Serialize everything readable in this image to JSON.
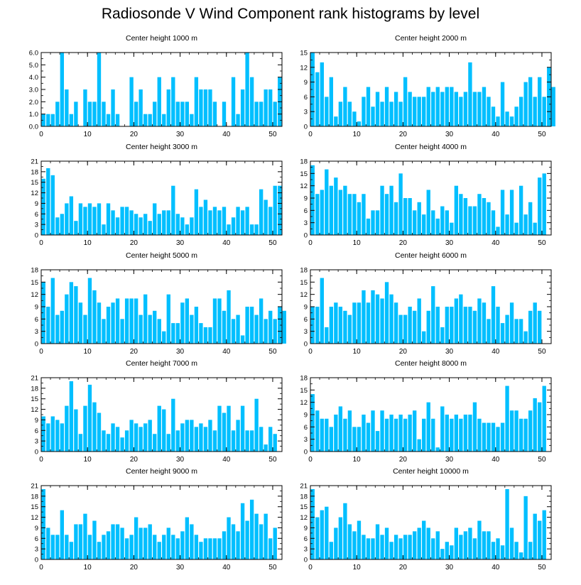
{
  "title": "Radiosonde V Wind Component rank histograms by level",
  "colors": {
    "bar": "#00bfff",
    "axis": "#000000"
  },
  "chart_data": [
    {
      "type": "bar",
      "title": "Center height 1000 m",
      "xlim": [
        0,
        52
      ],
      "ylim": [
        0,
        6
      ],
      "xticks": [
        0,
        10,
        20,
        30,
        40,
        50
      ],
      "yticks": [
        "0.0",
        "1.0",
        "2.0",
        "3.0",
        "4.0",
        "5.0",
        "6.0"
      ],
      "values": [
        1,
        1,
        1,
        2,
        6,
        3,
        1,
        2,
        0,
        3,
        2,
        2,
        6,
        2,
        1,
        3,
        1,
        0,
        0,
        4,
        2,
        3,
        1,
        1,
        2,
        4,
        1,
        3,
        4,
        2,
        2,
        2,
        1,
        4,
        3,
        3,
        3,
        2,
        0,
        2,
        0,
        4,
        1,
        3,
        6,
        4,
        2,
        2,
        3,
        3,
        2,
        4
      ]
    },
    {
      "type": "bar",
      "title": "Center height 2000 m",
      "xlim": [
        0,
        52
      ],
      "ylim": [
        0,
        15
      ],
      "xticks": [
        0,
        10,
        20,
        30,
        40,
        50
      ],
      "yticks": [
        "0",
        "3",
        "6",
        "9",
        "12",
        "15"
      ],
      "values": [
        15,
        11,
        13,
        6,
        10,
        2,
        5,
        8,
        5,
        3,
        1,
        6,
        8,
        4,
        7,
        5,
        8,
        5,
        7,
        5,
        10,
        7,
        6,
        6,
        6,
        8,
        7,
        8,
        7,
        8,
        8,
        7,
        6,
        7,
        13,
        7,
        7,
        8,
        6,
        4,
        2,
        9,
        3,
        2,
        4,
        6,
        9,
        10,
        6,
        10,
        6,
        12,
        8
      ]
    },
    {
      "type": "bar",
      "title": "Center height 3000 m",
      "xlim": [
        0,
        52
      ],
      "ylim": [
        0,
        21
      ],
      "xticks": [
        0,
        10,
        20,
        30,
        40,
        50
      ],
      "yticks": [
        "0",
        "3",
        "6",
        "9",
        "12",
        "15",
        "18",
        "21"
      ],
      "values": [
        16,
        19,
        17,
        5,
        6,
        9,
        11,
        4,
        9,
        8,
        9,
        8,
        9,
        3,
        9,
        7,
        5,
        8,
        8,
        7,
        6,
        5,
        6,
        4,
        9,
        6,
        7,
        7,
        14,
        6,
        5,
        3,
        5,
        13,
        8,
        10,
        7,
        8,
        7,
        8,
        3,
        5,
        8,
        7,
        8,
        3,
        3,
        13,
        10,
        8,
        14,
        14
      ]
    },
    {
      "type": "bar",
      "title": "Center height 4000 m",
      "xlim": [
        0,
        52
      ],
      "ylim": [
        0,
        18
      ],
      "xticks": [
        0,
        10,
        20,
        30,
        40,
        50
      ],
      "yticks": [
        "0",
        "3",
        "6",
        "9",
        "12",
        "15",
        "18"
      ],
      "values": [
        17,
        10,
        11,
        16,
        12,
        14,
        11,
        12,
        10,
        10,
        8,
        10,
        4,
        6,
        6,
        12,
        10,
        12,
        8,
        15,
        9,
        9,
        6,
        8,
        5,
        11,
        6,
        4,
        7,
        6,
        3,
        12,
        10,
        9,
        7,
        7,
        10,
        9,
        8,
        6,
        2,
        11,
        5,
        11,
        3,
        12,
        5,
        8,
        3,
        14,
        15
      ]
    },
    {
      "type": "bar",
      "title": "Center height 5000 m",
      "xlim": [
        0,
        52
      ],
      "ylim": [
        0,
        18
      ],
      "xticks": [
        0,
        10,
        20,
        30,
        40,
        50
      ],
      "yticks": [
        "0",
        "3",
        "6",
        "9",
        "12",
        "15",
        "18"
      ],
      "values": [
        15,
        9,
        16,
        7,
        8,
        12,
        15,
        14,
        10,
        7,
        16,
        13,
        10,
        6,
        9,
        10,
        11,
        6,
        11,
        11,
        11,
        7,
        12,
        7,
        8,
        6,
        3,
        12,
        5,
        5,
        10,
        11,
        7,
        9,
        5,
        4,
        4,
        11,
        11,
        8,
        13,
        6,
        7,
        2,
        9,
        9,
        7,
        11,
        6,
        8,
        6,
        9,
        8
      ]
    },
    {
      "type": "bar",
      "title": "Center height 6000 m",
      "xlim": [
        0,
        52
      ],
      "ylim": [
        0,
        18
      ],
      "xticks": [
        0,
        10,
        20,
        30,
        40,
        50
      ],
      "yticks": [
        "0",
        "3",
        "6",
        "9",
        "12",
        "15",
        "18"
      ],
      "values": [
        9,
        9,
        16,
        4,
        9,
        10,
        9,
        8,
        7,
        10,
        10,
        13,
        10,
        13,
        12,
        11,
        15,
        12,
        10,
        7,
        7,
        9,
        8,
        11,
        3,
        8,
        14,
        9,
        4,
        9,
        9,
        11,
        12,
        9,
        9,
        8,
        11,
        10,
        6,
        14,
        9,
        5,
        7,
        10,
        6,
        6,
        3,
        8,
        10,
        8
      ]
    },
    {
      "type": "bar",
      "title": "Center height 7000 m",
      "xlim": [
        0,
        52
      ],
      "ylim": [
        0,
        21
      ],
      "xticks": [
        0,
        10,
        20,
        30,
        40,
        50
      ],
      "yticks": [
        "0",
        "3",
        "6",
        "9",
        "12",
        "15",
        "18",
        "21"
      ],
      "values": [
        10,
        8,
        10,
        9,
        8,
        13,
        20,
        12,
        5,
        13,
        19,
        14,
        11,
        6,
        5,
        8,
        7,
        4,
        6,
        9,
        8,
        7,
        8,
        9,
        5,
        13,
        12,
        5,
        15,
        6,
        8,
        9,
        9,
        7,
        8,
        7,
        9,
        6,
        13,
        11,
        13,
        6,
        9,
        13,
        6,
        6,
        15,
        7,
        2,
        7,
        5
      ]
    },
    {
      "type": "bar",
      "title": "Center height 8000 m",
      "xlim": [
        0,
        52
      ],
      "ylim": [
        0,
        18
      ],
      "xticks": [
        0,
        10,
        20,
        30,
        40,
        50
      ],
      "yticks": [
        "0",
        "3",
        "6",
        "9",
        "12",
        "15",
        "18"
      ],
      "values": [
        14,
        10,
        8,
        8,
        6,
        9,
        11,
        8,
        10,
        6,
        6,
        9,
        7,
        10,
        5,
        10,
        8,
        9,
        8,
        9,
        8,
        9,
        10,
        3,
        8,
        12,
        8,
        1,
        11,
        9,
        8,
        9,
        8,
        9,
        9,
        12,
        8,
        7,
        7,
        7,
        6,
        7,
        16,
        10,
        10,
        8,
        8,
        10,
        13,
        12,
        16
      ]
    },
    {
      "type": "bar",
      "title": "Center height 9000 m",
      "xlim": [
        0,
        52
      ],
      "ylim": [
        0,
        21
      ],
      "xticks": [
        0,
        10,
        20,
        30,
        40,
        50
      ],
      "yticks": [
        "0",
        "3",
        "6",
        "9",
        "12",
        "15",
        "18",
        "21"
      ],
      "values": [
        20,
        9,
        7,
        7,
        14,
        7,
        5,
        10,
        10,
        13,
        7,
        11,
        5,
        7,
        8,
        10,
        10,
        9,
        6,
        7,
        12,
        9,
        9,
        10,
        7,
        5,
        7,
        9,
        7,
        6,
        8,
        12,
        10,
        7,
        5,
        6,
        6,
        6,
        6,
        8,
        12,
        10,
        8,
        16,
        11,
        17,
        13,
        10,
        13,
        6,
        9
      ]
    },
    {
      "type": "bar",
      "title": "Center height 10000 m",
      "xlim": [
        0,
        52
      ],
      "ylim": [
        0,
        21
      ],
      "xticks": [
        0,
        10,
        20,
        30,
        40,
        50
      ],
      "yticks": [
        "0",
        "3",
        "6",
        "9",
        "12",
        "15",
        "18",
        "21"
      ],
      "values": [
        20,
        12,
        14,
        15,
        5,
        9,
        12,
        16,
        10,
        8,
        11,
        7,
        6,
        6,
        10,
        7,
        9,
        5,
        7,
        6,
        7,
        7,
        8,
        9,
        11,
        9,
        6,
        8,
        3,
        5,
        4,
        9,
        7,
        8,
        9,
        6,
        11,
        8,
        8,
        5,
        6,
        4,
        20,
        9,
        5,
        2,
        18,
        5,
        13,
        11,
        14
      ]
    }
  ]
}
